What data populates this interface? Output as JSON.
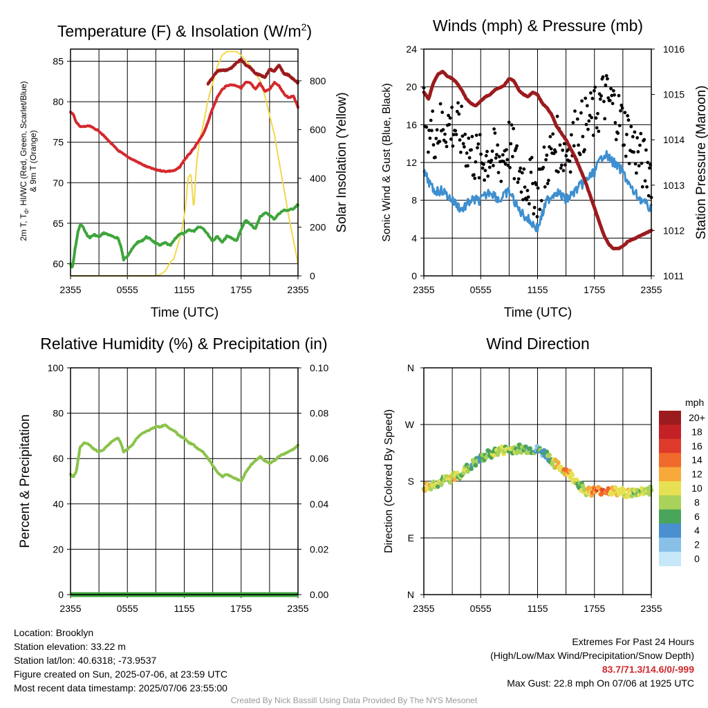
{
  "panels": {
    "temp": {
      "title": "Temperature (F) & Insolation (W/m",
      "title_sup": "2",
      "title_end": ")",
      "ylabel_lines": [
        "2m T, T",
        "d",
        ", HI/WC (Red, Green, Scarlet/Blue)",
        "& 9m T (Orange)"
      ],
      "y2label": "Solar Insolation (Yellow)",
      "xlabel": "Time (UTC)"
    },
    "winds": {
      "title": "Winds (mph) & Pressure (mb)",
      "ylabel": "Sonic Wind & Gust (Blue, Black)",
      "y2label": "Station Pressure (Maroon)",
      "xlabel": "Time (UTC)"
    },
    "rh": {
      "title": "Relative Humidity (%) & Precipitation (in)",
      "ylabel": "Percent & Precipitation"
    },
    "wdir": {
      "title": "Wind Direction",
      "ylabel": "Direction (Colored By Speed)",
      "colorbar_title": "mph"
    }
  },
  "chart_data": [
    {
      "type": "line",
      "title": "Temperature (F) & Insolation (W/m2)",
      "xlabel": "Time (UTC)",
      "ylabel": "2m T, Td, HI/WC (Red, Green, Scarlet/Blue) & 9m T (Orange)",
      "y2label": "Solar Insolation (Yellow)",
      "x_ticks": [
        "2355",
        "0555",
        "1155",
        "1755",
        "2355"
      ],
      "x_hours": [
        0,
        3,
        6,
        9,
        12,
        15,
        18,
        21,
        24
      ],
      "ylim": [
        58.5,
        86.5
      ],
      "y_ticks": [
        60,
        65,
        70,
        75,
        80,
        85
      ],
      "y2lim": [
        0,
        930
      ],
      "y2_ticks": [
        0,
        200,
        400,
        600,
        800
      ],
      "grid": true,
      "series": [
        {
          "name": "2m T",
          "color": "#d42a2e",
          "axis": "left",
          "x": [
            0,
            0.3,
            0.6,
            1,
            2,
            3,
            4,
            5,
            6,
            7,
            8,
            9,
            10,
            11,
            11.5,
            12,
            12.5,
            13,
            13.5,
            14,
            14.5,
            15,
            15.5,
            16,
            16.5,
            17,
            17.5,
            18,
            18.5,
            19,
            19.5,
            20,
            20.5,
            21,
            21.5,
            22,
            22.5,
            23,
            23.5,
            23.8,
            24
          ],
          "y": [
            78.7,
            78.4,
            77.5,
            76.9,
            77.0,
            76.4,
            75.2,
            74.0,
            73.2,
            72.6,
            72.0,
            71.6,
            71.4,
            71.5,
            71.9,
            72.8,
            73.5,
            74.2,
            75.1,
            76.0,
            77.5,
            79.2,
            80.6,
            81.5,
            82.0,
            82.1,
            82.0,
            81.7,
            82.4,
            82.3,
            81.5,
            82.3,
            81.3,
            81.5,
            82.4,
            82.0,
            81.0,
            80.5,
            80.7,
            80.0,
            79.3
          ]
        },
        {
          "name": "9m T",
          "color": "#9b1b1e",
          "axis": "left",
          "x": [
            14.5,
            15,
            15.5,
            16,
            16.5,
            17,
            17.5,
            18,
            18.5,
            19,
            19.5,
            20,
            20.5,
            21,
            21.5,
            22,
            22.5,
            23,
            23.5,
            24
          ],
          "y": [
            82.2,
            83.0,
            83.8,
            83.9,
            83.9,
            84.2,
            84.8,
            85.2,
            84.5,
            84.2,
            83.5,
            83.3,
            83.0,
            84.0,
            83.8,
            84.5,
            83.5,
            83.3,
            82.8,
            82.3
          ]
        },
        {
          "name": "Td",
          "color": "#3ea53c",
          "axis": "left",
          "x": [
            0,
            0.2,
            0.5,
            0.8,
            1,
            1.3,
            1.6,
            2,
            2.5,
            3,
            3.5,
            4,
            4.5,
            5,
            5.3,
            5.6,
            6,
            6.5,
            7,
            7.5,
            8,
            8.5,
            9,
            9.5,
            10,
            10.5,
            11,
            11.5,
            12,
            12.5,
            13,
            13.5,
            14,
            14.5,
            15,
            15.5,
            16,
            16.5,
            17,
            17.5,
            18,
            18.5,
            19,
            19.5,
            20,
            20.5,
            21,
            21.5,
            22,
            22.5,
            23,
            23.5,
            24
          ],
          "y": [
            60.0,
            59.4,
            62.0,
            64.0,
            64.8,
            64.6,
            63.8,
            63.2,
            63.6,
            63.3,
            63.8,
            63.6,
            63.3,
            63.2,
            62.2,
            60.5,
            61.0,
            61.8,
            62.6,
            62.8,
            63.3,
            63.0,
            62.5,
            62.3,
            62.6,
            62.2,
            63.0,
            63.7,
            63.7,
            64.2,
            64.0,
            64.6,
            64.4,
            63.6,
            62.8,
            63.4,
            62.6,
            63.4,
            63.2,
            62.8,
            64.2,
            65.4,
            64.8,
            64.3,
            65.8,
            66.3,
            66.0,
            65.5,
            66.2,
            66.6,
            66.6,
            66.8,
            67.3
          ]
        },
        {
          "name": "Solar Insolation",
          "color": "#f2d84a",
          "axis": "right",
          "x": [
            0,
            6,
            8,
            9,
            9.5,
            10,
            10.3,
            10.6,
            10.9,
            11.2,
            11.5,
            11.8,
            12.1,
            12.4,
            12.7,
            13.0,
            13.3,
            13.6,
            14.0,
            14.5,
            15.0,
            15.5,
            16.0,
            16.5,
            17.0,
            17.5,
            18.0,
            19.0,
            19.5,
            20.0,
            20.5,
            21.0,
            21.5,
            22.0,
            22.5,
            23.0,
            23.5,
            24.0
          ],
          "y": [
            0,
            0,
            0,
            0,
            6,
            20,
            40,
            60,
            70,
            110,
            150,
            200,
            270,
            400,
            420,
            270,
            460,
            550,
            620,
            720,
            790,
            860,
            905,
            920,
            920,
            920,
            905,
            860,
            830,
            800,
            740,
            660,
            580,
            470,
            360,
            250,
            150,
            50
          ]
        }
      ]
    },
    {
      "type": "line",
      "title": "Winds (mph) & Pressure (mb)",
      "xlabel": "Time (UTC)",
      "ylabel": "Sonic Wind & Gust (Blue, Black)",
      "y2label": "Station Pressure (Maroon)",
      "x_ticks": [
        "2355",
        "0555",
        "1155",
        "1755",
        "2355"
      ],
      "ylim": [
        0,
        24
      ],
      "y_ticks": [
        0,
        4,
        8,
        12,
        16,
        20,
        24
      ],
      "y2lim": [
        1011,
        1016
      ],
      "y2_ticks": [
        1011,
        1012,
        1013,
        1014,
        1015,
        1016
      ],
      "grid": true,
      "series": [
        {
          "name": "Sonic Wind",
          "color": "#3d8fd0",
          "axis": "left",
          "x": [
            0,
            1,
            2,
            3,
            4,
            5,
            6,
            7,
            8,
            9,
            10,
            11,
            12,
            13,
            14,
            15,
            16,
            17,
            18,
            19,
            20,
            21,
            22,
            23,
            24
          ],
          "y": [
            11,
            9,
            9,
            8,
            7,
            8,
            8,
            9,
            8,
            9,
            7,
            6,
            5,
            8,
            9,
            8,
            9,
            10,
            11,
            13,
            12,
            11,
            9,
            8,
            7
          ]
        },
        {
          "name": "Gust",
          "color": "#000000",
          "axis": "left",
          "x": [
            0,
            1,
            2,
            3,
            4,
            5,
            6,
            7,
            8,
            9,
            10,
            11,
            12,
            13,
            14,
            15,
            16,
            17,
            18,
            19,
            20,
            21,
            22,
            23,
            24
          ],
          "y": [
            17,
            15,
            16,
            16,
            15,
            13,
            12,
            13,
            12,
            14,
            11,
            10,
            9,
            12,
            14,
            13,
            15,
            16,
            17,
            19,
            18,
            16,
            14,
            12,
            11
          ]
        },
        {
          "name": "Station Pressure",
          "color": "#9b1b1e",
          "axis": "right",
          "x": [
            0,
            0.5,
            1,
            1.5,
            2,
            2.5,
            3,
            3.5,
            4,
            4.5,
            5,
            5.5,
            6,
            6.5,
            7,
            7.5,
            8,
            8.5,
            9,
            9.5,
            10,
            10.5,
            11,
            11.5,
            12,
            12.5,
            13,
            13.5,
            14,
            14.5,
            15,
            15.5,
            16,
            16.5,
            17,
            17.5,
            18,
            18.5,
            19,
            19.5,
            20,
            20.5,
            21,
            21.5,
            22,
            22.5,
            23,
            23.5,
            24
          ],
          "y": [
            1015.05,
            1014.9,
            1015.25,
            1015.45,
            1015.5,
            1015.4,
            1015.35,
            1015.25,
            1015.1,
            1014.9,
            1014.8,
            1014.75,
            1014.85,
            1014.95,
            1015.0,
            1015.1,
            1015.15,
            1015.2,
            1015.35,
            1015.3,
            1015.1,
            1015.0,
            1014.95,
            1015.05,
            1015.0,
            1014.8,
            1014.7,
            1014.55,
            1014.3,
            1014.15,
            1014.0,
            1013.8,
            1013.6,
            1013.35,
            1013.1,
            1012.8,
            1012.5,
            1012.2,
            1011.9,
            1011.7,
            1011.6,
            1011.6,
            1011.65,
            1011.75,
            1011.8,
            1011.85,
            1011.9,
            1011.95,
            1012.0
          ]
        }
      ]
    },
    {
      "type": "line",
      "title": "Relative Humidity (%) & Precipitation (in)",
      "ylabel": "Percent & Precipitation",
      "x_ticks": [
        "2355",
        "0555",
        "1155",
        "1755",
        "2355"
      ],
      "ylim": [
        0,
        100
      ],
      "y_ticks": [
        0,
        20,
        40,
        60,
        80,
        100
      ],
      "y2lim": [
        0,
        0.1
      ],
      "y2_ticks": [
        "0.00",
        "0.02",
        "0.04",
        "0.06",
        "0.08",
        "0.10"
      ],
      "grid": true,
      "series": [
        {
          "name": "Relative Humidity",
          "color": "#8bc34a",
          "axis": "left",
          "x": [
            0,
            0.3,
            0.6,
            1,
            1.5,
            2,
            2.5,
            3,
            3.5,
            4,
            4.5,
            5,
            5.3,
            5.6,
            6,
            6.5,
            7,
            7.5,
            8,
            8.5,
            9,
            9.5,
            10,
            10.5,
            11,
            11.5,
            12,
            12.5,
            13,
            13.5,
            14,
            14.5,
            15,
            15.5,
            16,
            16.5,
            17,
            17.5,
            18,
            18.5,
            19,
            19.5,
            20,
            20.5,
            21,
            21.5,
            22,
            22.5,
            23,
            23.5,
            24
          ],
          "y": [
            53,
            52,
            54,
            65,
            67,
            66,
            64,
            63,
            64,
            66,
            68,
            69,
            67,
            63,
            64,
            66,
            69,
            71,
            72,
            73,
            74,
            74,
            75,
            73,
            72,
            70,
            69,
            67,
            66,
            64,
            63,
            60,
            57,
            54,
            52,
            53,
            52,
            51,
            50,
            54,
            57,
            59,
            61,
            59,
            58,
            59,
            61,
            62,
            63,
            64,
            66
          ]
        },
        {
          "name": "Precipitation",
          "color": "#3ea53c",
          "axis": "right",
          "x": [
            0,
            24
          ],
          "y": [
            0,
            0
          ]
        }
      ]
    },
    {
      "type": "scatter",
      "title": "Wind Direction",
      "ylabel": "Direction (Colored By Speed)",
      "x_ticks": [
        "2355",
        "0555",
        "1155",
        "1755",
        "2355"
      ],
      "y_ticks": [
        "N",
        "E",
        "S",
        "W",
        "N"
      ],
      "ylim": [
        0,
        360
      ],
      "grid": true,
      "colorbar": {
        "title": "mph",
        "labels": [
          "20+",
          "18",
          "16",
          "14",
          "12",
          "10",
          "8",
          "6",
          "4",
          "2",
          "0"
        ],
        "colors": [
          "#9b1b1e",
          "#c42127",
          "#de3b2c",
          "#f06a2b",
          "#f8a93a",
          "#e6e052",
          "#a9d25a",
          "#4aa55a",
          "#4a8fd0",
          "#88c0e8",
          "#c6e7f8"
        ]
      },
      "points_desc": "direction (degrees) vs hour since 2355 UTC, colored by speed (mph)",
      "hours": [
        0,
        1,
        2,
        3,
        4,
        5,
        6,
        7,
        8,
        9,
        10,
        11,
        12,
        13,
        14,
        15,
        16,
        17,
        18,
        19,
        20,
        21,
        22,
        23,
        24
      ],
      "directions": [
        170,
        175,
        180,
        186,
        193,
        205,
        215,
        224,
        228,
        230,
        232,
        231,
        229,
        222,
        205,
        196,
        182,
        165,
        164,
        166,
        164,
        162,
        161,
        164,
        166
      ],
      "speeds": [
        12,
        10,
        9,
        11,
        9,
        8,
        7,
        8,
        9,
        10,
        8,
        7,
        5,
        7,
        11,
        13,
        10,
        9,
        14,
        15,
        13,
        12,
        10,
        9,
        8
      ]
    }
  ],
  "footer": {
    "location": "Location: Brooklyn",
    "elevation": "Station elevation: 33.22 m",
    "latlon": "Station lat/lon: 40.6318; -73.9537",
    "created": "Figure created on Sun, 2025-07-06, at 23:59 UTC",
    "recent": "Most recent data timestamp: 2025/07/06 23:55:00",
    "extremes_title": "Extremes For Past 24 Hours",
    "extremes_desc": "(High/Low/Max Wind/Precipitation/Snow Depth)",
    "extremes_values": "83.7/71.3/14.6/0/-999",
    "max_gust": "Max Gust: 22.8 mph On 07/06 at 1925 UTC",
    "credit": "Created By Nick Bassill Using Data Provided By The NYS Mesonet"
  }
}
